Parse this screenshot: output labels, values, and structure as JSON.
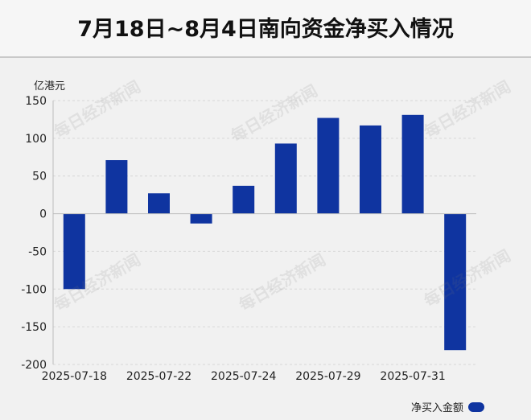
{
  "title": "7月18日~8月4日南向资金净买入情况",
  "watermark": "每日经济新闻",
  "colors": {
    "bar": "#0f34a0",
    "grid": "#d8d8d8",
    "axis": "#bdbdbd"
  },
  "chart_data": {
    "type": "bar",
    "title": "7月18日~8月4日南向资金净买入情况",
    "ylabel": "亿港元",
    "xlabel": "",
    "ylim": [
      -200,
      150
    ],
    "yticks": [
      150,
      100,
      50,
      0,
      -50,
      -100,
      -150,
      -200
    ],
    "ytick_labels": [
      "150",
      "100",
      "50",
      "0",
      "-50",
      "-100",
      "-150",
      "-200"
    ],
    "xtick_labels": [
      "2025-07-18",
      "2025-07-22",
      "2025-07-24",
      "2025-07-29",
      "2025-07-31"
    ],
    "grid": true,
    "legend_position": "bottom-right",
    "series": [
      {
        "name": "净买入金额",
        "values": [
          -100,
          71,
          27,
          -13,
          37,
          93,
          127,
          117,
          131,
          -181
        ]
      }
    ]
  }
}
